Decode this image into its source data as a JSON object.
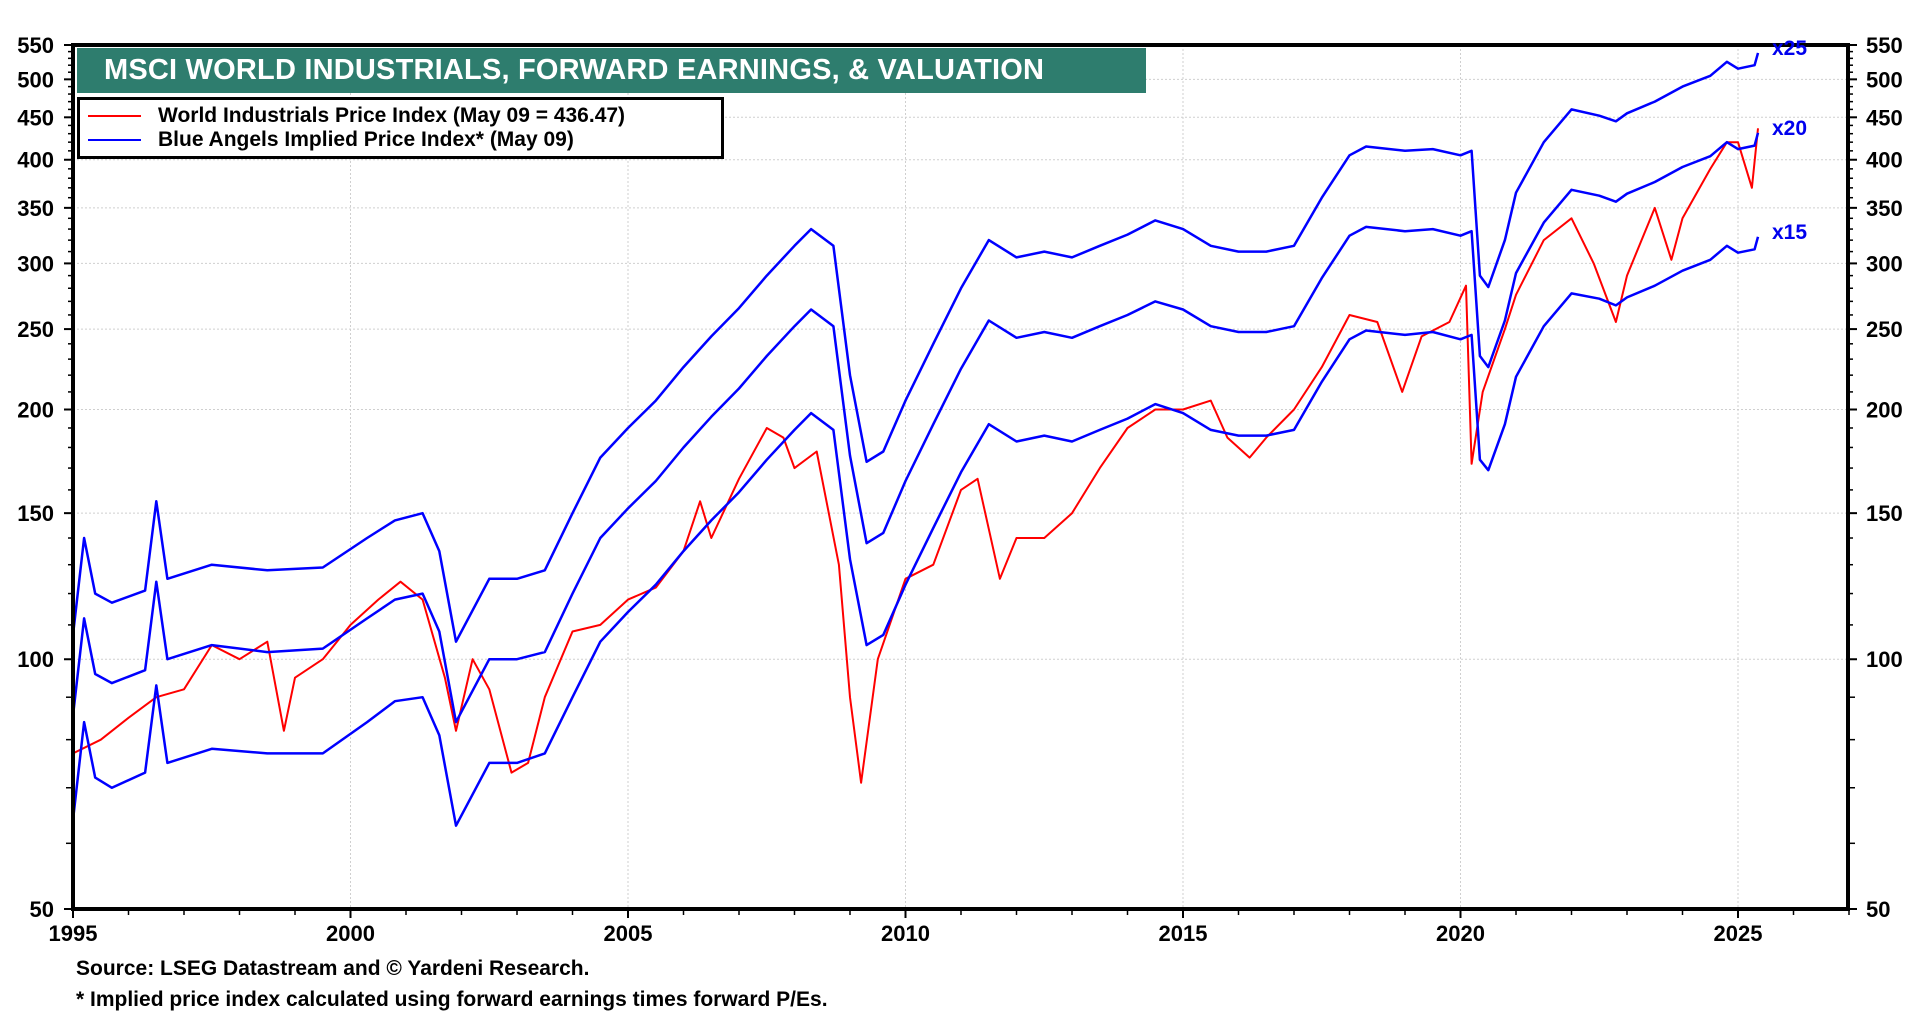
{
  "chart_data": {
    "type": "line",
    "title": "MSCI WORLD INDUSTRIALS, FORWARD EARNINGS, & VALUATION",
    "xlabel": "",
    "ylabel": "",
    "yscale": "log",
    "xlim": [
      1995,
      2027
    ],
    "ylim": [
      50,
      550
    ],
    "x_ticks": [
      1995,
      2000,
      2005,
      2010,
      2015,
      2020,
      2025
    ],
    "x_tick_labels": [
      "1995",
      "2000",
      "2005",
      "2010",
      "2015",
      "2020",
      "2025"
    ],
    "y_ticks": [
      50,
      100,
      150,
      200,
      250,
      300,
      350,
      400,
      450,
      500,
      550
    ],
    "y_tick_labels": [
      "50",
      "100",
      "150",
      "200",
      "250",
      "300",
      "350",
      "400",
      "450",
      "500",
      "550"
    ],
    "y_axes": "left-and-right",
    "grid": true,
    "legend": {
      "placement": "top-left",
      "entries": [
        {
          "label": "World Industrials Price Index (May 09 = 436.47)",
          "color": "#ff0000"
        },
        {
          "label": "Blue Angels Implied Price Index* (May 09)",
          "color": "#0000ff"
        }
      ]
    },
    "series": [
      {
        "name": "World Industrials Price Index",
        "color": "#ff0000",
        "x": [
          1995.0,
          1995.5,
          1996.0,
          1996.5,
          1997.0,
          1997.5,
          1998.0,
          1998.5,
          1998.8,
          1999.0,
          1999.5,
          2000.0,
          2000.5,
          2000.9,
          2001.3,
          2001.7,
          2001.9,
          2002.2,
          2002.5,
          2002.9,
          2003.2,
          2003.5,
          2004.0,
          2004.5,
          2005.0,
          2005.5,
          2006.0,
          2006.3,
          2006.5,
          2007.0,
          2007.5,
          2007.8,
          2008.0,
          2008.4,
          2008.8,
          2009.0,
          2009.2,
          2009.5,
          2010.0,
          2010.5,
          2011.0,
          2011.3,
          2011.7,
          2012.0,
          2012.5,
          2013.0,
          2013.5,
          2014.0,
          2014.5,
          2015.0,
          2015.5,
          2015.8,
          2016.2,
          2016.5,
          2017.0,
          2017.5,
          2018.0,
          2018.5,
          2018.95,
          2019.3,
          2019.8,
          2020.1,
          2020.2,
          2020.4,
          2020.8,
          2021.0,
          2021.5,
          2022.0,
          2022.4,
          2022.8,
          2023.0,
          2023.5,
          2023.8,
          2024.0,
          2024.5,
          2024.8,
          2025.0,
          2025.25,
          2025.36
        ],
        "values": [
          77,
          80,
          85,
          90,
          92,
          104,
          100,
          105,
          82,
          95,
          100,
          110,
          118,
          124,
          118,
          95,
          82,
          100,
          92,
          73,
          75,
          90,
          108,
          110,
          118,
          122,
          135,
          155,
          140,
          165,
          190,
          185,
          170,
          178,
          130,
          90,
          71,
          100,
          125,
          130,
          160,
          165,
          125,
          140,
          140,
          150,
          170,
          190,
          200,
          200,
          205,
          185,
          175,
          185,
          200,
          225,
          260,
          255,
          210,
          245,
          255,
          282,
          172,
          210,
          250,
          275,
          320,
          340,
          300,
          255,
          290,
          350,
          303,
          340,
          390,
          420,
          420,
          370,
          436.47
        ]
      },
      {
        "name": "Blue Angels Implied Price Index x15",
        "label": "x15",
        "color": "#0000ff",
        "x": [
          1995.0,
          1995.2,
          1995.4,
          1995.7,
          1996.3,
          1996.5,
          1996.7,
          1997.5,
          1998.5,
          1999.5,
          2000.3,
          2000.8,
          2001.3,
          2001.6,
          2001.9,
          2002.5,
          2003.0,
          2003.5,
          2004.0,
          2004.5,
          2005.0,
          2005.5,
          2006.0,
          2006.5,
          2007.0,
          2007.5,
          2008.0,
          2008.3,
          2008.7,
          2009.0,
          2009.3,
          2009.6,
          2010.0,
          2010.5,
          2011.0,
          2011.5,
          2012.0,
          2012.5,
          2013.0,
          2013.5,
          2014.0,
          2014.5,
          2015.0,
          2015.5,
          2016.0,
          2016.5,
          2017.0,
          2017.5,
          2018.0,
          2018.3,
          2019.0,
          2019.5,
          2020.0,
          2020.2,
          2020.35,
          2020.5,
          2020.8,
          2021.0,
          2021.5,
          2022.0,
          2022.5,
          2022.8,
          2023.0,
          2023.5,
          2024.0,
          2024.5,
          2024.8,
          2025.0,
          2025.3,
          2025.36
        ],
        "values": [
          64,
          84,
          72,
          70,
          73,
          93,
          75,
          78,
          77,
          77,
          84,
          89,
          90,
          81,
          63,
          75,
          75,
          77,
          90,
          105,
          114,
          123,
          135,
          147,
          159,
          174,
          189,
          198,
          189,
          132,
          104,
          107,
          123,
          144,
          168,
          192,
          183,
          186,
          183,
          189,
          195,
          203,
          198,
          189,
          186,
          186,
          189,
          216,
          243,
          249,
          246,
          248,
          243,
          246,
          174,
          169,
          192,
          219,
          252,
          276,
          272,
          267,
          273,
          282,
          294,
          303,
          315,
          309,
          312,
          323
        ]
      },
      {
        "name": "Blue Angels Implied Price Index x20",
        "label": "x20",
        "color": "#0000ff",
        "x": [
          1995.0,
          1995.2,
          1995.4,
          1995.7,
          1996.3,
          1996.5,
          1996.7,
          1997.5,
          1998.5,
          1999.5,
          2000.3,
          2000.8,
          2001.3,
          2001.6,
          2001.9,
          2002.5,
          2003.0,
          2003.5,
          2004.0,
          2004.5,
          2005.0,
          2005.5,
          2006.0,
          2006.5,
          2007.0,
          2007.5,
          2008.0,
          2008.3,
          2008.7,
          2009.0,
          2009.3,
          2009.6,
          2010.0,
          2010.5,
          2011.0,
          2011.5,
          2012.0,
          2012.5,
          2013.0,
          2013.5,
          2014.0,
          2014.5,
          2015.0,
          2015.5,
          2016.0,
          2016.5,
          2017.0,
          2017.5,
          2018.0,
          2018.3,
          2019.0,
          2019.5,
          2020.0,
          2020.2,
          2020.35,
          2020.5,
          2020.8,
          2021.0,
          2021.5,
          2022.0,
          2022.5,
          2022.8,
          2023.0,
          2023.5,
          2024.0,
          2024.5,
          2024.8,
          2025.0,
          2025.3,
          2025.36
        ],
        "values": [
          85.5,
          112,
          96,
          93.6,
          97,
          124,
          100,
          104,
          102,
          103,
          112,
          118,
          120,
          108,
          84,
          100,
          100,
          102,
          120,
          140,
          152,
          164,
          180,
          196,
          212,
          232,
          252,
          264,
          252,
          176,
          138,
          142,
          164,
          192,
          224,
          256,
          244,
          248,
          244,
          252,
          260,
          270,
          264,
          252,
          248,
          248,
          252,
          288,
          324,
          332,
          328,
          330,
          324,
          328,
          232,
          225,
          256,
          292,
          336,
          368,
          362,
          356,
          364,
          376,
          392,
          404,
          420,
          412,
          416,
          431
        ]
      },
      {
        "name": "Blue Angels Implied Price Index x25",
        "label": "x25",
        "color": "#0000ff",
        "x": [
          1995.0,
          1995.2,
          1995.4,
          1995.7,
          1996.3,
          1996.5,
          1996.7,
          1997.5,
          1998.5,
          1999.5,
          2000.3,
          2000.8,
          2001.3,
          2001.6,
          2001.9,
          2002.5,
          2003.0,
          2003.5,
          2004.0,
          2004.5,
          2005.0,
          2005.5,
          2006.0,
          2006.5,
          2007.0,
          2007.5,
          2008.0,
          2008.3,
          2008.7,
          2009.0,
          2009.3,
          2009.6,
          2010.0,
          2010.5,
          2011.0,
          2011.5,
          2012.0,
          2012.5,
          2013.0,
          2013.5,
          2014.0,
          2014.5,
          2015.0,
          2015.5,
          2016.0,
          2016.5,
          2017.0,
          2017.5,
          2018.0,
          2018.3,
          2019.0,
          2019.5,
          2020.0,
          2020.2,
          2020.35,
          2020.5,
          2020.8,
          2021.0,
          2021.5,
          2022.0,
          2022.5,
          2022.8,
          2023.0,
          2023.5,
          2024.0,
          2024.5,
          2024.8,
          2025.0,
          2025.3,
          2025.36
        ],
        "values": [
          107,
          140,
          120,
          117,
          121,
          155,
          125,
          130,
          128,
          129,
          140,
          147,
          150,
          135,
          105,
          125,
          125,
          128,
          150,
          175,
          190,
          205,
          225,
          245,
          265,
          290,
          315,
          330,
          315,
          220,
          173,
          178,
          205,
          240,
          280,
          320,
          305,
          310,
          305,
          315,
          325,
          338,
          330,
          315,
          310,
          310,
          315,
          360,
          405,
          415,
          410,
          412,
          405,
          410,
          290,
          281,
          320,
          365,
          420,
          460,
          452,
          445,
          455,
          470,
          490,
          505,
          525,
          515,
          520,
          538
        ]
      }
    ],
    "annotations": [
      "x25",
      "x20",
      "x15"
    ],
    "source_note": "Source: LSEG Datastream and © Yardeni Research.",
    "footnote": "* Implied price index calculated using forward earnings times forward P/Es."
  }
}
